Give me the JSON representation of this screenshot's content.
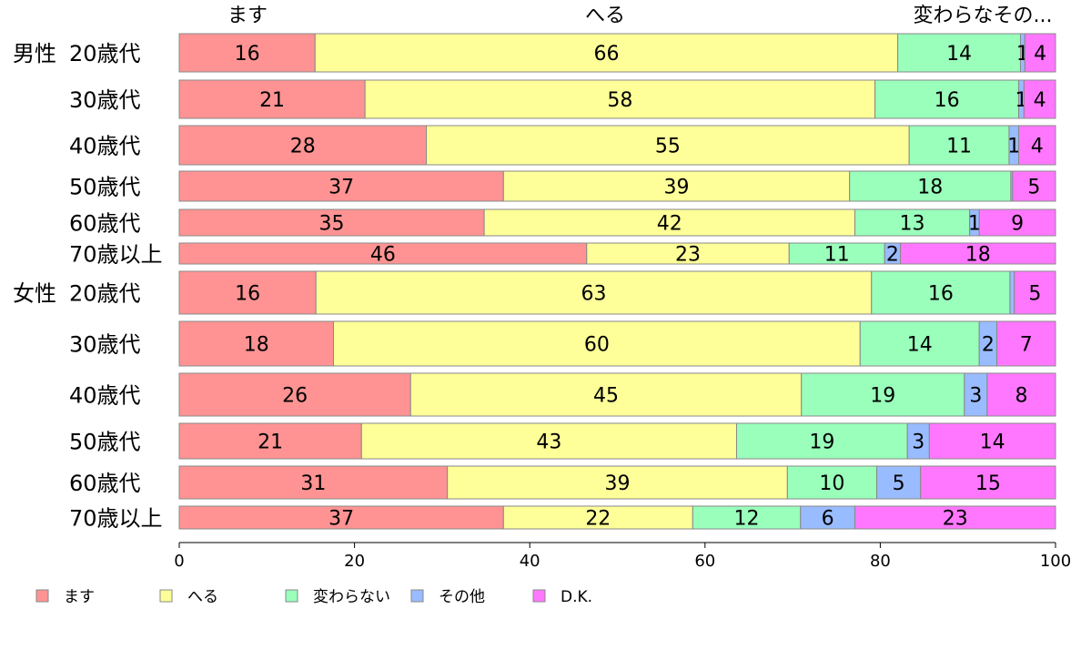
{
  "chart_data": {
    "type": "bar",
    "orientation": "horizontal",
    "stacked": true,
    "top_labels": [
      "ます",
      "へる",
      "変わらなその..."
    ],
    "series": [
      {
        "name": "ます",
        "color": "#ff9393"
      },
      {
        "name": "へる",
        "color": "#ffff99"
      },
      {
        "name": "変わらない",
        "color": "#99ffbb"
      },
      {
        "name": "その他",
        "color": "#99bbff"
      },
      {
        "name": "D.K.",
        "color": "#ff77ff"
      }
    ],
    "rows": [
      {
        "group": "男性",
        "label": "20歳代",
        "values": [
          15.5,
          66.5,
          14.0,
          0.5,
          3.5
        ],
        "labels": [
          "16",
          "66",
          "14",
          "1",
          "4"
        ]
      },
      {
        "group": "",
        "label": "30歳代",
        "values": [
          21.2,
          58.2,
          16.4,
          0.6,
          3.6
        ],
        "labels": [
          "21",
          "58",
          "16",
          "1",
          "4"
        ]
      },
      {
        "group": "",
        "label": "40歳代",
        "values": [
          28.2,
          55.1,
          11.4,
          1.1,
          4.2
        ],
        "labels": [
          "28",
          "55",
          "11",
          "1",
          "4"
        ]
      },
      {
        "group": "",
        "label": "50歳代",
        "values": [
          37.0,
          39.5,
          18.4,
          0.2,
          4.9
        ],
        "labels": [
          "37",
          "39",
          "18",
          "",
          "5"
        ]
      },
      {
        "group": "",
        "label": "60歳代",
        "values": [
          34.8,
          42.3,
          13.1,
          1.1,
          8.7
        ],
        "labels": [
          "35",
          "42",
          "13",
          "1",
          "9"
        ]
      },
      {
        "group": "",
        "label": "70歳以上",
        "values": [
          46.5,
          23.1,
          10.9,
          1.8,
          17.7
        ],
        "labels": [
          "46",
          "23",
          "11",
          "2",
          "18"
        ]
      },
      {
        "group": "女性",
        "label": "20歳代",
        "values": [
          15.6,
          63.4,
          15.8,
          0.5,
          4.7
        ],
        "labels": [
          "16",
          "63",
          "16",
          "",
          "5"
        ]
      },
      {
        "group": "",
        "label": "30歳代",
        "values": [
          17.6,
          60.1,
          13.6,
          2.0,
          6.7
        ],
        "labels": [
          "18",
          "60",
          "14",
          "2",
          "7"
        ]
      },
      {
        "group": "",
        "label": "40歳代",
        "values": [
          26.4,
          44.6,
          18.6,
          2.6,
          7.8
        ],
        "labels": [
          "26",
          "45",
          "19",
          "3",
          "8"
        ]
      },
      {
        "group": "",
        "label": "50歳代",
        "values": [
          20.8,
          42.8,
          19.5,
          2.5,
          14.4
        ],
        "labels": [
          "21",
          "43",
          "19",
          "3",
          "14"
        ]
      },
      {
        "group": "",
        "label": "60歳代",
        "values": [
          30.6,
          38.8,
          10.2,
          5.0,
          15.4
        ],
        "labels": [
          "31",
          "39",
          "10",
          "5",
          "15"
        ]
      },
      {
        "group": "",
        "label": "70歳以上",
        "values": [
          37.0,
          21.6,
          12.3,
          6.2,
          22.9
        ],
        "labels": [
          "37",
          "22",
          "12",
          "6",
          "23"
        ]
      }
    ],
    "xlim": [
      0,
      100
    ],
    "xticks": [
      "0",
      "20",
      "40",
      "60",
      "80",
      "100"
    ],
    "legend_position": "bottom"
  }
}
